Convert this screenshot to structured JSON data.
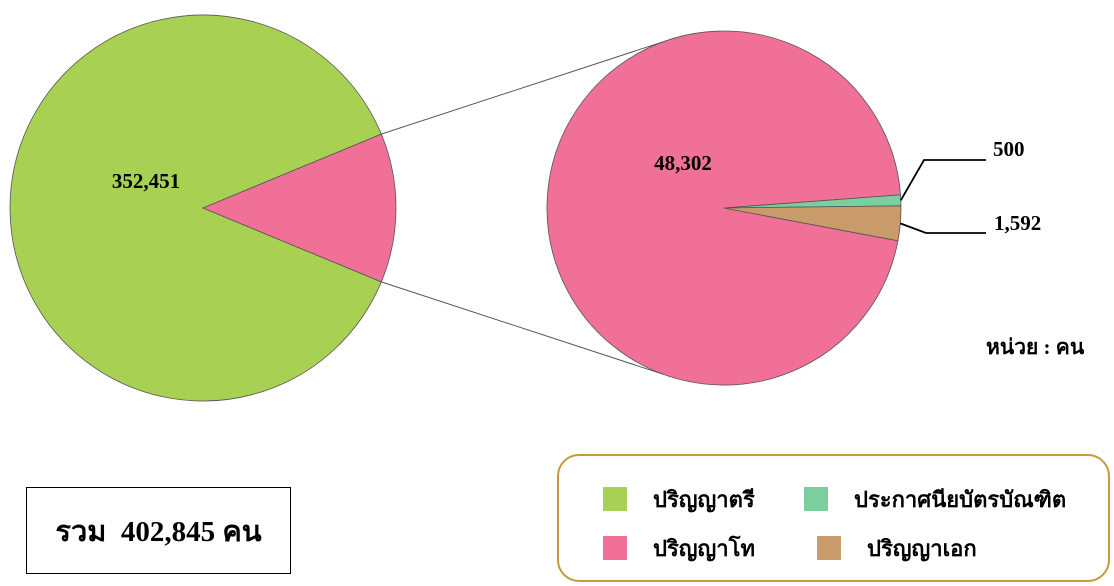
{
  "chart_data": [
    {
      "type": "pie",
      "slices": [
        {
          "label": "ปริญญาตรี",
          "value": 352451,
          "value_label": "352,451",
          "color": "#a8d154"
        },
        {
          "label": "other (ปริญญาโท + ประกาศนียบัตรบัณฑิต + ปริญญาเอก)",
          "value": 50394,
          "value_label": "",
          "color": "#f07097"
        }
      ]
    },
    {
      "type": "pie",
      "slices": [
        {
          "label": "ปริญญาโท",
          "value": 48302,
          "value_label": "48,302",
          "color": "#f07097"
        },
        {
          "label": "ประกาศนียบัตรบัณฑิต",
          "value": 500,
          "value_label": "500",
          "color": "#7bcf9e"
        },
        {
          "label": "ปริญญาเอก",
          "value": 1592,
          "value_label": "1,592",
          "color": "#c99a6a"
        }
      ]
    }
  ],
  "unit_label": "หน่วย : คน",
  "total_text": "รวม  402,845 คน",
  "legend": [
    {
      "label": "ปริญญาตรี",
      "color": "#a8d154"
    },
    {
      "label": "ประกาศนียบัตรบัณฑิต",
      "color": "#7bcf9e"
    },
    {
      "label": "ปริญญาโท",
      "color": "#f07097"
    },
    {
      "label": "ปริญญาเอก",
      "color": "#c99a6a"
    }
  ]
}
